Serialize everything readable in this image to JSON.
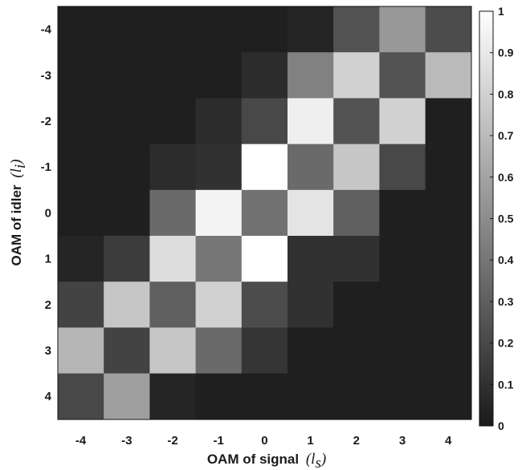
{
  "chart_data": {
    "type": "heatmap",
    "colormap": "gray",
    "x_label": {
      "text": "OAM of signal",
      "symbol": "(l",
      "sub": "s",
      "close": ")"
    },
    "y_label": {
      "text": "OAM of idler",
      "symbol": "(l",
      "sub": "i",
      "close": ")"
    },
    "x_categories": [
      "-4",
      "-3",
      "-2",
      "-1",
      "0",
      "1",
      "2",
      "3",
      "4"
    ],
    "y_categories": [
      "-4",
      "-3",
      "-2",
      "-1",
      "0",
      "1",
      "2",
      "3",
      "4"
    ],
    "values": [
      [
        0.02,
        0.02,
        0.02,
        0.02,
        0.02,
        0.05,
        0.25,
        0.55,
        0.22
      ],
      [
        0.02,
        0.02,
        0.02,
        0.02,
        0.08,
        0.45,
        0.8,
        0.25,
        0.7
      ],
      [
        0.02,
        0.02,
        0.02,
        0.08,
        0.2,
        0.93,
        0.25,
        0.8,
        0.02
      ],
      [
        0.02,
        0.02,
        0.08,
        0.1,
        1.0,
        0.35,
        0.75,
        0.2,
        0.02
      ],
      [
        0.02,
        0.02,
        0.35,
        0.95,
        0.38,
        0.88,
        0.3,
        0.02,
        0.02
      ],
      [
        0.05,
        0.15,
        0.85,
        0.4,
        1.0,
        0.1,
        0.1,
        0.02,
        0.02
      ],
      [
        0.18,
        0.75,
        0.3,
        0.8,
        0.22,
        0.1,
        0.02,
        0.02,
        0.02
      ],
      [
        0.68,
        0.18,
        0.75,
        0.35,
        0.12,
        0.02,
        0.02,
        0.02,
        0.02
      ],
      [
        0.2,
        0.58,
        0.05,
        0.02,
        0.02,
        0.02,
        0.02,
        0.02,
        0.02
      ]
    ],
    "colorbar": {
      "range": [
        0,
        1
      ],
      "ticks": [
        "0",
        "0.1",
        "0.2",
        "0.3",
        "0.4",
        "0.5",
        "0.6",
        "0.7",
        "0.8",
        "0.9",
        "1"
      ]
    }
  }
}
